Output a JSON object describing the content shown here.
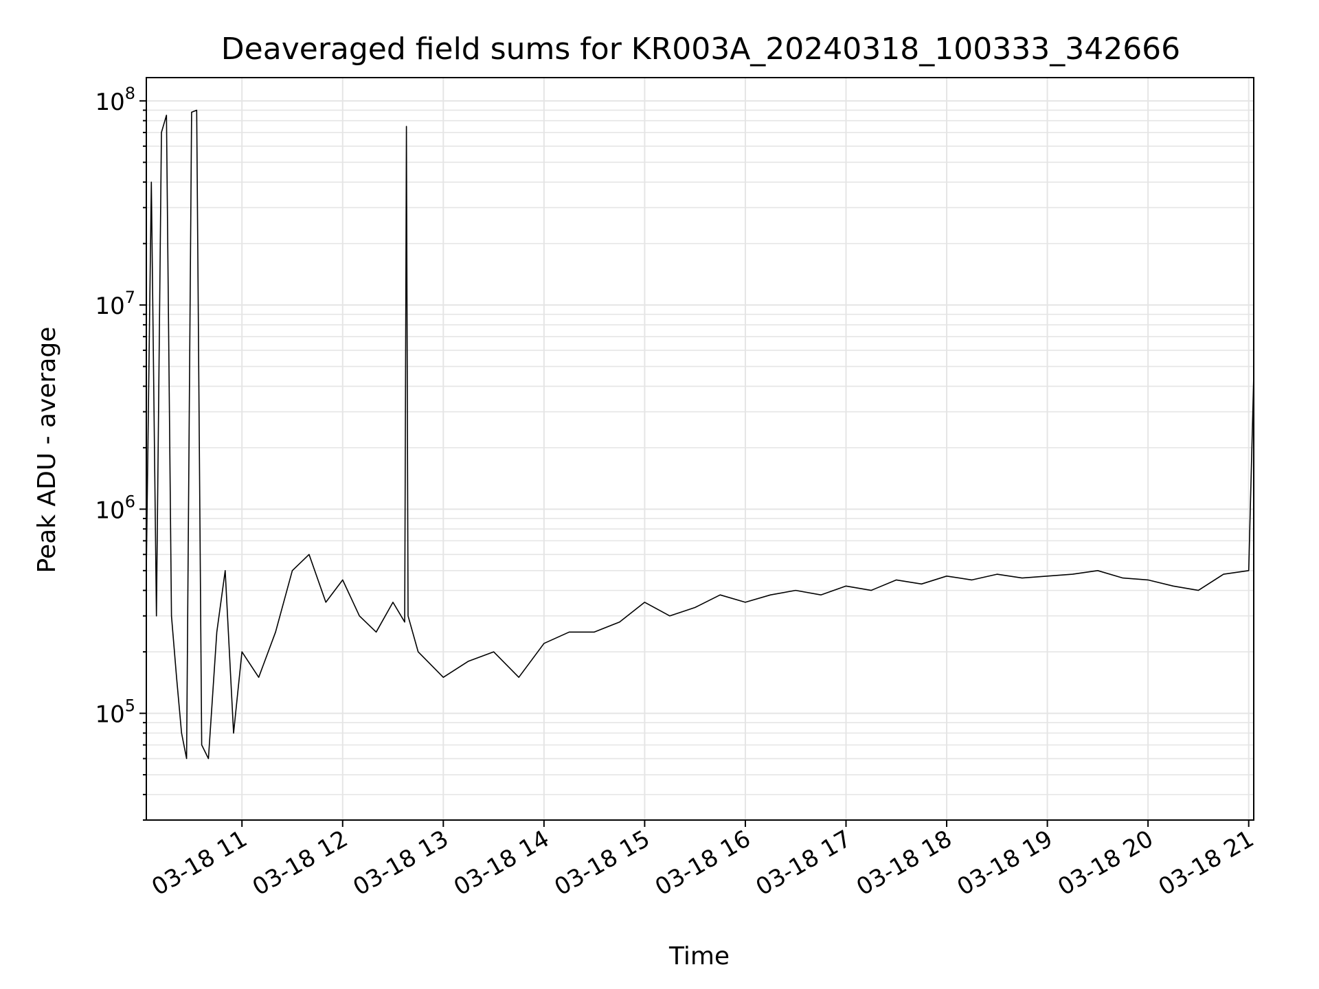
{
  "chart_data": {
    "type": "line",
    "title": "Deaveraged field sums for KR003A_20240318_100333_342666",
    "xlabel": "Time",
    "ylabel": "Peak ADU - average",
    "yscale": "log",
    "grid": true,
    "line_color": "#000000",
    "grid_color": "#e5e5e5",
    "xlim": [
      "03-18 10:03",
      "03-18 21:03"
    ],
    "ylim": [
      30000,
      130000000
    ],
    "x_ticks": [
      {
        "label": "03-18 11",
        "value": "03-18 11:00"
      },
      {
        "label": "03-18 12",
        "value": "03-18 12:00"
      },
      {
        "label": "03-18 13",
        "value": "03-18 13:00"
      },
      {
        "label": "03-18 14",
        "value": "03-18 14:00"
      },
      {
        "label": "03-18 15",
        "value": "03-18 15:00"
      },
      {
        "label": "03-18 16",
        "value": "03-18 16:00"
      },
      {
        "label": "03-18 17",
        "value": "03-18 17:00"
      },
      {
        "label": "03-18 18",
        "value": "03-18 18:00"
      },
      {
        "label": "03-18 19",
        "value": "03-18 19:00"
      },
      {
        "label": "03-18 20",
        "value": "03-18 20:00"
      },
      {
        "label": "03-18 21",
        "value": "03-18 21:00"
      }
    ],
    "y_ticks": [
      {
        "base": "10",
        "exp": "5",
        "value": 100000
      },
      {
        "base": "10",
        "exp": "6",
        "value": 1000000
      },
      {
        "base": "10",
        "exp": "7",
        "value": 10000000
      },
      {
        "base": "10",
        "exp": "8",
        "value": 100000000
      }
    ],
    "series": [
      {
        "x": [
          "03-18 10:03",
          "03-18 10:06",
          "03-18 10:09",
          "03-18 10:12",
          "03-18 10:15",
          "03-18 10:18",
          "03-18 10:21",
          "03-18 10:24",
          "03-18 10:27",
          "03-18 10:30",
          "03-18 10:33",
          "03-18 10:36",
          "03-18 10:40",
          "03-18 10:45",
          "03-18 10:50",
          "03-18 10:55",
          "03-18 11:00",
          "03-18 11:10",
          "03-18 11:20",
          "03-18 11:30",
          "03-18 11:40",
          "03-18 11:50",
          "03-18 12:00",
          "03-18 12:10",
          "03-18 12:20",
          "03-18 12:30",
          "03-18 12:37",
          "03-18 12:38",
          "03-18 12:39",
          "03-18 12:45",
          "03-18 13:00",
          "03-18 13:15",
          "03-18 13:30",
          "03-18 13:45",
          "03-18 14:00",
          "03-18 14:15",
          "03-18 14:30",
          "03-18 14:45",
          "03-18 15:00",
          "03-18 15:15",
          "03-18 15:30",
          "03-18 15:45",
          "03-18 16:00",
          "03-18 16:15",
          "03-18 16:30",
          "03-18 16:45",
          "03-18 17:00",
          "03-18 17:15",
          "03-18 17:30",
          "03-18 17:45",
          "03-18 18:00",
          "03-18 18:15",
          "03-18 18:30",
          "03-18 18:45",
          "03-18 19:00",
          "03-18 19:15",
          "03-18 19:30",
          "03-18 19:45",
          "03-18 20:00",
          "03-18 20:15",
          "03-18 20:30",
          "03-18 20:45",
          "03-18 21:00",
          "03-18 21:03"
        ],
        "values": [
          500000,
          40000000,
          300000,
          70000000,
          85000000,
          300000,
          150000,
          80000,
          60000,
          88000000,
          90000000,
          70000,
          60000,
          250000,
          500000,
          80000,
          200000,
          150000,
          250000,
          500000,
          600000,
          350000,
          450000,
          300000,
          250000,
          350000,
          280000,
          75000000,
          300000,
          200000,
          150000,
          180000,
          200000,
          150000,
          220000,
          250000,
          250000,
          280000,
          350000,
          300000,
          330000,
          380000,
          350000,
          380000,
          400000,
          380000,
          420000,
          400000,
          450000,
          430000,
          470000,
          450000,
          480000,
          460000,
          470000,
          480000,
          500000,
          460000,
          450000,
          420000,
          400000,
          480000,
          500000,
          4500000
        ]
      }
    ]
  }
}
